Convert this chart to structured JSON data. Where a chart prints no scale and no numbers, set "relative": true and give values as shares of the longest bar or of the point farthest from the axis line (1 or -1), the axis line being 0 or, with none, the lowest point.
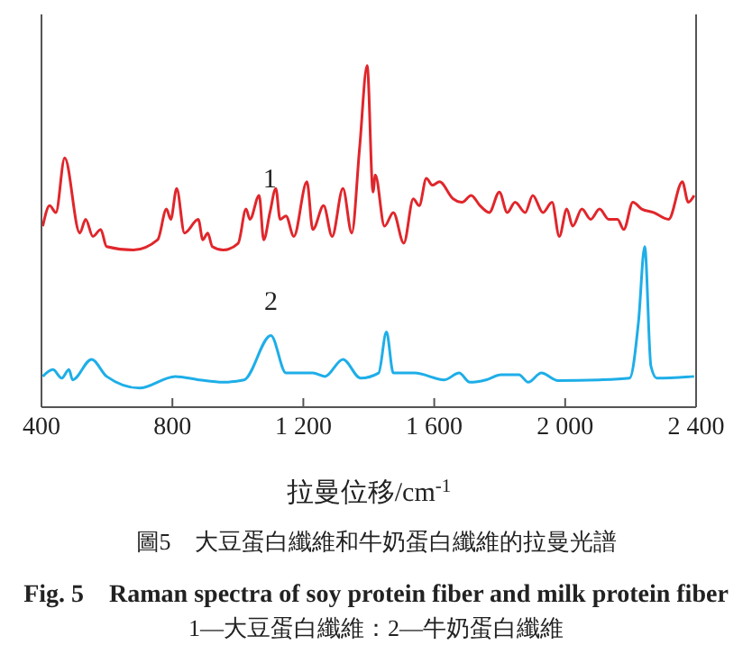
{
  "chart_data": {
    "type": "line",
    "relative": true,
    "xlabel": "拉曼位移/cm$^{-1}$",
    "xlim": [
      400,
      2400
    ],
    "xticks": [
      400,
      800,
      {
        "value": 1200,
        "label": "1 200"
      },
      {
        "value": 1600,
        "label": "1 600"
      },
      {
        "value": 2000,
        "label": "2 000"
      },
      {
        "value": 2400,
        "label": "2 400"
      }
    ],
    "marker": "none",
    "annotations": [
      "圖5　大豆蛋白纖維和牛奶蛋白纖維的拉曼光譜",
      "Fig. 5　Raman spectra of soy protein fiber and milk protein fiber",
      "1—大豆蛋白纖維：2—牛奶蛋白纖維"
    ],
    "series": [
      {
        "name": "1",
        "color": "#e0262b",
        "x": [
          404,
          425,
          444,
          471,
          517,
          535,
          557,
          581,
          599,
          681,
          755,
          782,
          795,
          813,
          837,
          879,
          893,
          908,
          922,
          955,
          1001,
          1025,
          1037,
          1065,
          1079,
          1098,
          1116,
          1129,
          1147,
          1171,
          1211,
          1229,
          1262,
          1288,
          1321,
          1348,
          1372,
          1395,
          1413,
          1420,
          1448,
          1475,
          1507,
          1536,
          1554,
          1576,
          1594,
          1616,
          1658,
          1685,
          1713,
          1740,
          1768,
          1799,
          1823,
          1847,
          1878,
          1901,
          1932,
          1960,
          1982,
          2005,
          2023,
          2051,
          2078,
          2105,
          2133,
          2160,
          2179,
          2207,
          2234,
          2270,
          2316,
          2358,
          2376,
          2394
        ],
        "values": [
          0.53,
          0.59,
          0.57,
          0.73,
          0.51,
          0.55,
          0.5,
          0.52,
          0.47,
          0.46,
          0.49,
          0.58,
          0.55,
          0.64,
          0.51,
          0.55,
          0.49,
          0.51,
          0.47,
          0.46,
          0.48,
          0.58,
          0.55,
          0.62,
          0.49,
          0.57,
          0.64,
          0.55,
          0.56,
          0.5,
          0.66,
          0.52,
          0.59,
          0.5,
          0.64,
          0.51,
          0.76,
          1,
          0.63,
          0.68,
          0.53,
          0.57,
          0.48,
          0.61,
          0.59,
          0.67,
          0.65,
          0.66,
          0.61,
          0.6,
          0.62,
          0.59,
          0.57,
          0.63,
          0.57,
          0.6,
          0.57,
          0.62,
          0.57,
          0.6,
          0.5,
          0.58,
          0.53,
          0.58,
          0.55,
          0.58,
          0.55,
          0.55,
          0.52,
          0.6,
          0.58,
          0.57,
          0.55,
          0.66,
          0.6,
          0.62
        ]
      },
      {
        "name": "2",
        "color": "#1eaee8",
        "x": [
          404,
          435,
          462,
          484,
          495,
          553,
          599,
          699,
          809,
          882,
          955,
          1019,
          1101,
          1147,
          1229,
          1266,
          1321,
          1375,
          1430,
          1454,
          1475,
          1540,
          1631,
          1676,
          1709,
          1758,
          1804,
          1859,
          1887,
          1927,
          1978,
          2105,
          2197,
          2224,
          2243,
          2262,
          2280,
          2394
        ],
        "values": [
          0.09,
          0.11,
          0.085,
          0.11,
          0.08,
          0.14,
          0.09,
          0.056,
          0.09,
          0.08,
          0.073,
          0.08,
          0.21,
          0.1,
          0.1,
          0.09,
          0.14,
          0.085,
          0.1,
          0.22,
          0.1,
          0.1,
          0.08,
          0.1,
          0.073,
          0.08,
          0.095,
          0.095,
          0.073,
          0.1,
          0.078,
          0.08,
          0.085,
          0.25,
          0.47,
          0.12,
          0.085,
          0.09
        ]
      }
    ]
  }
}
